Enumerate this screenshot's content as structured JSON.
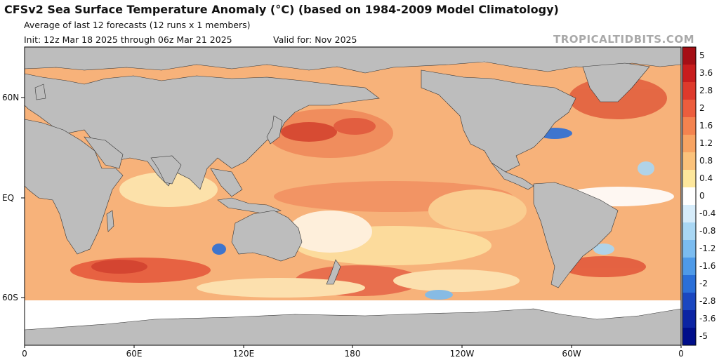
{
  "header": {
    "title": "CFSv2 Sea Surface Temperature Anomaly (°C) (based on 1984-2009 Model Climatology)",
    "subtitle": "Average of last 12 forecasts (12 runs x 1 members)",
    "init": "Init: 12z Mar 18 2025 through 06z Mar 21 2025",
    "valid": "Valid for: Nov 2025",
    "watermark": "TROPICALTIDBITS.COM"
  },
  "map": {
    "latitude_labels": [
      "60N",
      "EQ",
      "60S"
    ],
    "longitude_labels": [
      "0",
      "60E",
      "120E",
      "180",
      "120W",
      "60W",
      "0"
    ]
  },
  "colorbar": {
    "labels": [
      "5",
      "3.6",
      "2.8",
      "2",
      "1.6",
      "1.2",
      "0.8",
      "0.4",
      "0",
      "-0.4",
      "-0.8",
      "-1.2",
      "-1.6",
      "-2",
      "-2.8",
      "-3.6",
      "-5"
    ],
    "colors": [
      "#a50f15",
      "#c81d1d",
      "#de3a2c",
      "#ec5d3d",
      "#f4834f",
      "#f8a463",
      "#fbc27b",
      "#fde79c",
      "#ffffff",
      "#d6ecfa",
      "#a9d7f4",
      "#7bbcf0",
      "#4e9ae8",
      "#2a6fd8",
      "#1a47c0",
      "#0c24a3",
      "#000e8a"
    ]
  },
  "palette": {
    "land": "#bdbdbd",
    "ice": "#ffffff",
    "warm_bg": "#f6b479"
  }
}
